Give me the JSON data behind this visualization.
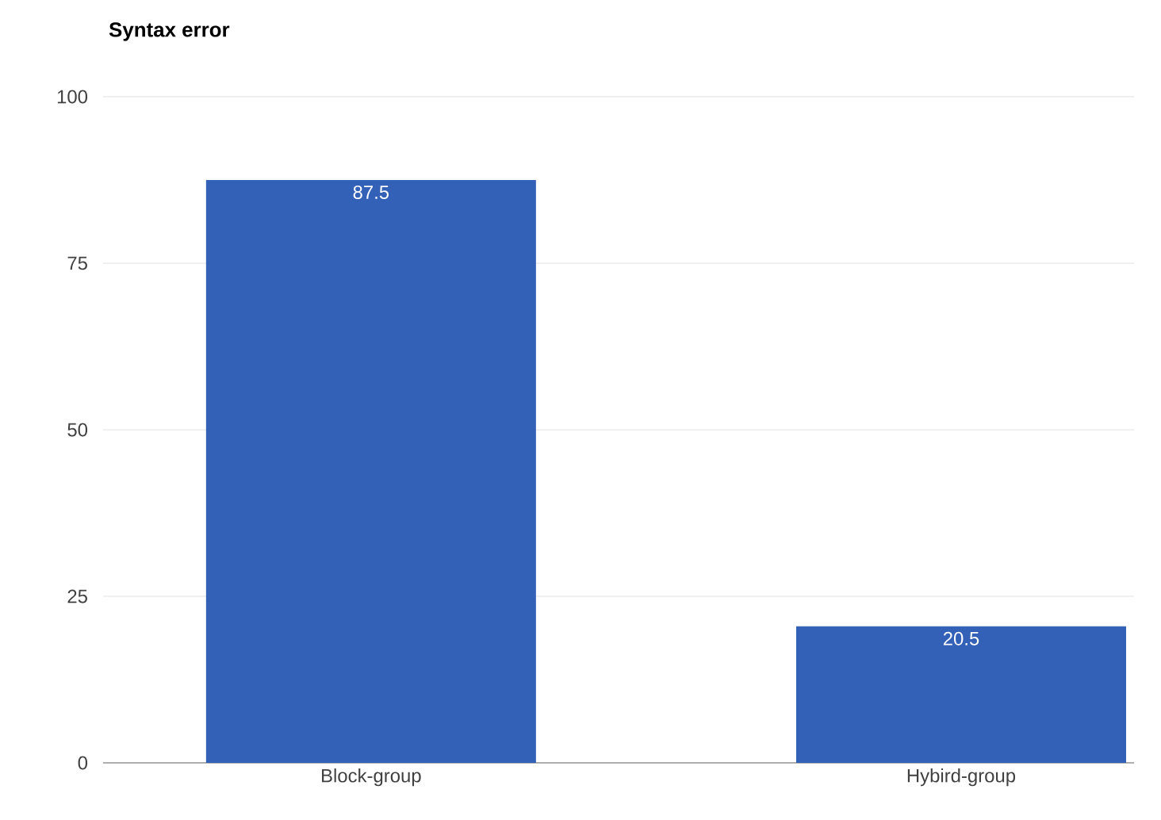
{
  "chart_data": {
    "type": "bar",
    "title": "Syntax error",
    "categories": [
      "Block-group",
      "Hybird-group"
    ],
    "values": [
      87.5,
      20.5
    ],
    "color": "#3461b8",
    "ylim": [
      0,
      100
    ],
    "yticks": [
      0,
      25,
      50,
      75,
      100
    ],
    "grid": "y",
    "data_labels": true
  }
}
